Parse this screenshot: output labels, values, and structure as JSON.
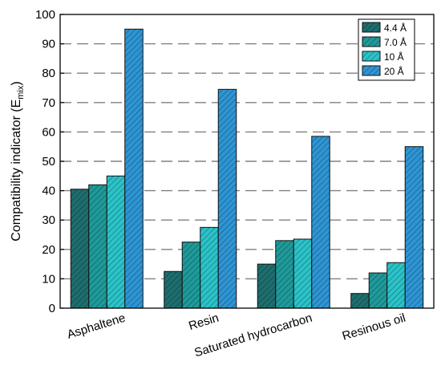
{
  "chart_data": {
    "type": "bar",
    "title": "",
    "xlabel": "",
    "ylabel": "Compatibility indicator (E",
    "ylabel_subscript": "mix",
    "ylabel_suffix": ")",
    "ylim": [
      0,
      100
    ],
    "yticks": [
      0,
      10,
      20,
      30,
      40,
      50,
      60,
      70,
      80,
      90,
      100
    ],
    "grid": "horizontal dashed",
    "legend_position": "top-right",
    "categories": [
      "Asphaltene",
      "Resin",
      "Saturated  hydrocarbon",
      "Resinous oil"
    ],
    "series": [
      {
        "name": "4.4 Å",
        "values": [
          40.5,
          12.5,
          15.0,
          5.0
        ],
        "color": "#1e6e6e"
      },
      {
        "name": "7.0 Å",
        "values": [
          42.0,
          22.5,
          23.0,
          12.0
        ],
        "color": "#1f9a9a"
      },
      {
        "name": "10  Å",
        "values": [
          45.0,
          27.5,
          23.5,
          15.5
        ],
        "color": "#2bc3c8"
      },
      {
        "name": "20  Å",
        "values": [
          95.0,
          74.5,
          58.5,
          55.0
        ],
        "color": "#2e95d4"
      }
    ]
  }
}
